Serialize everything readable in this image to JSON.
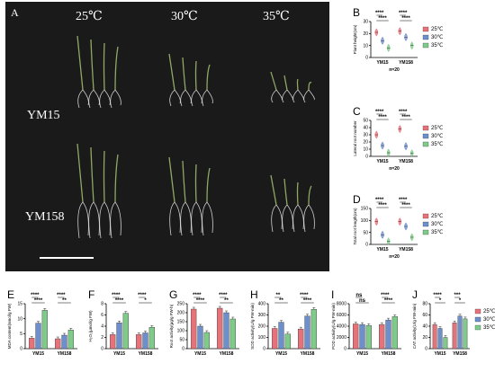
{
  "photo_panel": {
    "letter": "A",
    "temps": [
      "25℃",
      "30℃",
      "35℃"
    ],
    "rows": [
      "YM15",
      "YM158"
    ]
  },
  "colors": {
    "25": "#e8727a",
    "30": "#6d8fcb",
    "35": "#7ecb8a",
    "photo_bg": "#1a1a1a"
  },
  "chart_data": [
    {
      "id": "B",
      "type": "violin",
      "title": "",
      "ylabel": "Plant height(cm)",
      "categories": [
        "YM15",
        "YM158"
      ],
      "ylim": [
        0,
        30
      ],
      "yticks": [
        0,
        10,
        20,
        30
      ],
      "series": [
        {
          "name": "25℃",
          "values": [
            21,
            22
          ]
        },
        {
          "name": "30℃",
          "values": [
            14,
            17
          ]
        },
        {
          "name": "35℃",
          "values": [
            8,
            10
          ]
        }
      ],
      "note": "n=20",
      "sig": [
        {
          "cat": 0,
          "pairs": [
            "****",
            "****"
          ]
        },
        {
          "cat": 1,
          "pairs": [
            "****",
            "****"
          ]
        }
      ],
      "legend": [
        "25℃",
        "30℃",
        "35℃"
      ]
    },
    {
      "id": "C",
      "type": "violin",
      "title": "",
      "ylabel": "Lateral root number",
      "categories": [
        "YM15",
        "YM158"
      ],
      "ylim": [
        0,
        50
      ],
      "yticks": [
        0,
        10,
        20,
        30,
        40,
        50
      ],
      "series": [
        {
          "name": "25℃",
          "values": [
            30,
            38
          ]
        },
        {
          "name": "30℃",
          "values": [
            15,
            14
          ]
        },
        {
          "name": "35℃",
          "values": [
            5,
            4
          ]
        }
      ],
      "note": "n=20",
      "sig": [
        {
          "cat": 0,
          "pairs": [
            "****",
            "****"
          ]
        },
        {
          "cat": 1,
          "pairs": [
            "****",
            "****"
          ]
        }
      ],
      "legend": [
        "25℃",
        "30℃",
        "35℃"
      ]
    },
    {
      "id": "D",
      "type": "violin",
      "title": "",
      "ylabel": "Total root length(cm)",
      "categories": [
        "YM15",
        "YM158"
      ],
      "ylim": [
        0,
        150
      ],
      "yticks": [
        0,
        50,
        100,
        150
      ],
      "series": [
        {
          "name": "25℃",
          "values": [
            95,
            95
          ]
        },
        {
          "name": "30℃",
          "values": [
            40,
            75
          ]
        },
        {
          "name": "35℃",
          "values": [
            12,
            30
          ]
        }
      ],
      "note": "n=20",
      "sig": [
        {
          "cat": 0,
          "pairs": [
            "****",
            "****"
          ]
        },
        {
          "cat": 1,
          "pairs": [
            "****",
            "****"
          ]
        }
      ],
      "legend": [
        "25℃",
        "30℃",
        "35℃"
      ]
    },
    {
      "id": "E",
      "type": "bar",
      "title": "",
      "ylabel": "MDA content(nmol/g FW)",
      "categories": [
        "YM15",
        "YM158"
      ],
      "ylim": [
        0,
        15
      ],
      "yticks": [
        0,
        5,
        10,
        15
      ],
      "series": [
        {
          "name": "25℃",
          "values": [
            3.5,
            3.3
          ]
        },
        {
          "name": "30℃",
          "values": [
            8.5,
            4.5
          ]
        },
        {
          "name": "35℃",
          "values": [
            12.8,
            6.2
          ]
        }
      ],
      "sig": [
        {
          "cat": 0,
          "pairs": [
            "****",
            "****"
          ]
        },
        {
          "cat": 1,
          "pairs": [
            "****",
            "**"
          ]
        }
      ]
    },
    {
      "id": "F",
      "type": "bar",
      "title": "",
      "ylabel": "H₂O₂(μmol/g FW)",
      "categories": [
        "YM15",
        "YM158"
      ],
      "ylim": [
        0,
        8
      ],
      "yticks": [
        0,
        2,
        4,
        6,
        8
      ],
      "series": [
        {
          "name": "25℃",
          "values": [
            2.5,
            2.5
          ]
        },
        {
          "name": "30℃",
          "values": [
            4.6,
            2.8
          ]
        },
        {
          "name": "35℃",
          "values": [
            6.3,
            3.8
          ]
        }
      ],
      "sig": [
        {
          "cat": 0,
          "pairs": [
            "****",
            "****"
          ]
        },
        {
          "cat": 1,
          "pairs": [
            "****",
            "*"
          ]
        }
      ]
    },
    {
      "id": "G",
      "type": "bar",
      "title": "",
      "ylabel": "Root activity(μg/g FW·h)",
      "categories": [
        "YM15",
        "YM158"
      ],
      "ylim": [
        0,
        250
      ],
      "yticks": [
        0,
        50,
        100,
        150,
        200,
        250
      ],
      "series": [
        {
          "name": "25℃",
          "values": [
            220,
            225
          ]
        },
        {
          "name": "30℃",
          "values": [
            125,
            200
          ]
        },
        {
          "name": "35℃",
          "values": [
            90,
            165
          ]
        }
      ],
      "sig": [
        {
          "cat": 0,
          "pairs": [
            "****",
            "****"
          ]
        },
        {
          "cat": 1,
          "pairs": [
            "****",
            "**"
          ]
        }
      ]
    },
    {
      "id": "H",
      "type": "bar",
      "title": "",
      "ylabel": "SOD activity(U/g FW·min)",
      "categories": [
        "YM15",
        "YM158"
      ],
      "ylim": [
        0,
        400
      ],
      "yticks": [
        0,
        100,
        200,
        300,
        400
      ],
      "series": [
        {
          "name": "25℃",
          "values": [
            180,
            175
          ]
        },
        {
          "name": "30℃",
          "values": [
            235,
            290
          ]
        },
        {
          "name": "35℃",
          "values": [
            130,
            350
          ]
        }
      ],
      "sig": [
        {
          "cat": 0,
          "pairs": [
            "**",
            "**"
          ]
        },
        {
          "cat": 1,
          "pairs": [
            "****",
            "****"
          ]
        }
      ]
    },
    {
      "id": "I",
      "type": "bar",
      "title": "",
      "ylabel": "POD activity(U/g FW·min)",
      "categories": [
        "YM15",
        "YM158"
      ],
      "ylim": [
        0,
        8000
      ],
      "yticks": [
        0,
        2000,
        4000,
        6000,
        8000
      ],
      "series": [
        {
          "name": "25℃",
          "values": [
            4400,
            4300
          ]
        },
        {
          "name": "30℃",
          "values": [
            4300,
            5100
          ]
        },
        {
          "name": "35℃",
          "values": [
            4100,
            5700
          ]
        }
      ],
      "sig": [
        {
          "cat": 0,
          "pairs": [
            "ns",
            "ns"
          ]
        },
        {
          "cat": 1,
          "pairs": [
            "****",
            "****"
          ]
        }
      ]
    },
    {
      "id": "J",
      "type": "bar",
      "title": "",
      "ylabel": "CAT activity(U/g FW·min)",
      "categories": [
        "YM15",
        "YM158"
      ],
      "ylim": [
        0,
        80
      ],
      "yticks": [
        0,
        20,
        40,
        60,
        80
      ],
      "series": [
        {
          "name": "25℃",
          "values": [
            43,
            46
          ]
        },
        {
          "name": "30℃",
          "values": [
            36,
            58
          ]
        },
        {
          "name": "35℃",
          "values": [
            20,
            53
          ]
        }
      ],
      "sig": [
        {
          "cat": 0,
          "pairs": [
            "****",
            "*"
          ]
        },
        {
          "cat": 1,
          "pairs": [
            "***",
            "*"
          ]
        }
      ],
      "legend": [
        "25℃",
        "30℃",
        "35℃"
      ]
    }
  ]
}
